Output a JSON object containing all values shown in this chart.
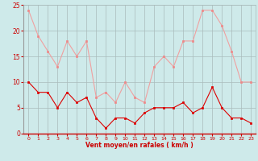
{
  "x": [
    0,
    1,
    2,
    3,
    4,
    5,
    6,
    7,
    8,
    9,
    10,
    11,
    12,
    13,
    14,
    15,
    16,
    17,
    18,
    19,
    20,
    21,
    22,
    23
  ],
  "rafales": [
    24,
    19,
    16,
    13,
    18,
    15,
    18,
    7,
    8,
    6,
    10,
    7,
    6,
    13,
    15,
    13,
    18,
    18,
    24,
    24,
    21,
    16,
    10,
    10
  ],
  "moyen": [
    10,
    8,
    8,
    5,
    8,
    6,
    7,
    3,
    1,
    3,
    3,
    2,
    4,
    5,
    5,
    5,
    6,
    4,
    5,
    9,
    5,
    3,
    3,
    2
  ],
  "bg_color": "#ceeaea",
  "grid_color": "#aabbbb",
  "line_rafales_color": "#f0a0a0",
  "line_moyen_color": "#dd0000",
  "marker_color_rafales": "#ee8888",
  "marker_color_moyen": "#dd0000",
  "xlabel": "Vent moyen/en rafales ( km/h )",
  "xlabel_color": "#cc0000",
  "tick_color": "#cc0000",
  "ylim": [
    0,
    25
  ],
  "yticks": [
    0,
    5,
    10,
    15,
    20,
    25
  ],
  "xlim": [
    -0.5,
    23.5
  ]
}
